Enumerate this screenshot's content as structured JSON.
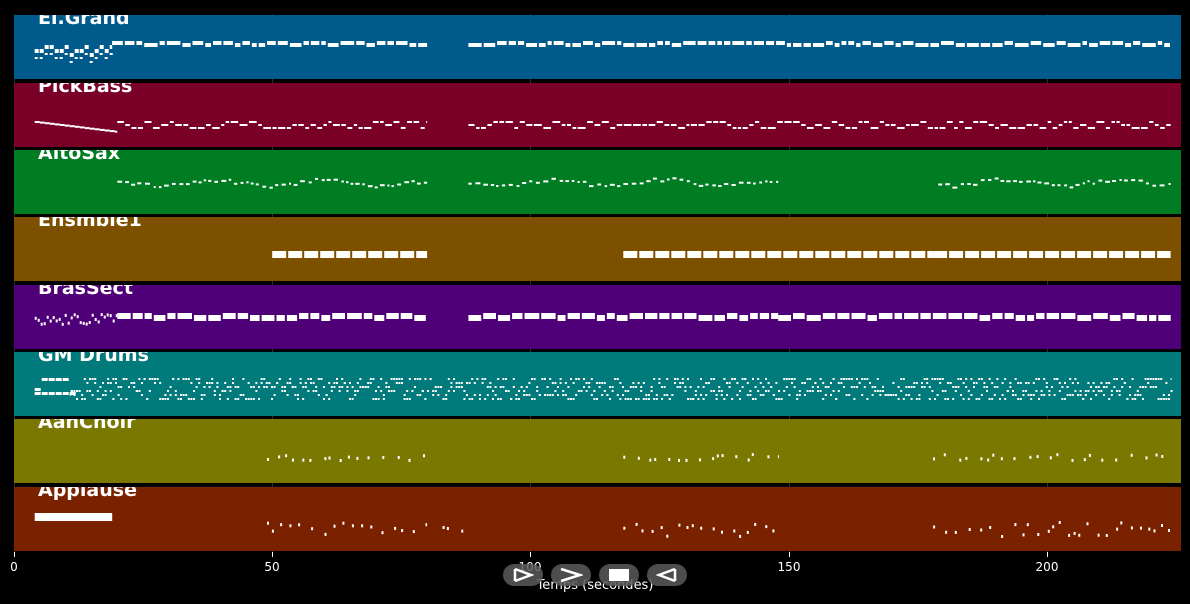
{
  "window": {
    "background": "#000000"
  },
  "axis": {
    "xlabel": "Temps (secondes)",
    "ticks": [
      "0",
      "50",
      "100",
      "150",
      "200"
    ],
    "tick_values": [
      0,
      50,
      100,
      150,
      200
    ],
    "xlim": [
      0,
      226
    ]
  },
  "tracks": [
    {
      "name": "El.Grand",
      "color": "#005a8c",
      "icon": "piano-roll-lane"
    },
    {
      "name": "PickBass",
      "color": "#7a0028",
      "icon": "piano-roll-lane"
    },
    {
      "name": "AltoSax",
      "color": "#007d22",
      "icon": "piano-roll-lane"
    },
    {
      "name": "Ensmble1",
      "color": "#7d5000",
      "icon": "piano-roll-lane"
    },
    {
      "name": "BrasSect",
      "color": "#4f0078",
      "icon": "piano-roll-lane"
    },
    {
      "name": "GM Drums",
      "color": "#007a7a",
      "icon": "piano-roll-lane"
    },
    {
      "name": "AahChoir",
      "color": "#7a7800",
      "icon": "piano-roll-lane"
    },
    {
      "name": "Applause",
      "color": "#7a2200",
      "icon": "piano-roll-lane"
    }
  ],
  "controls": [
    {
      "name": "play-button",
      "icon": "play-outline-icon"
    },
    {
      "name": "fast-forward-button",
      "icon": "chevron-right-icon"
    },
    {
      "name": "stop-button",
      "icon": "stop-square-icon"
    },
    {
      "name": "rewind-button",
      "icon": "play-left-icon"
    }
  ]
}
